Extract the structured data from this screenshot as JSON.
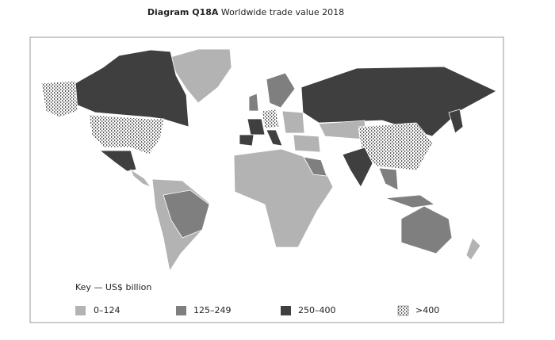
{
  "title": {
    "label": "Diagram Q18A",
    "text": "Worldwide trade value 2018"
  },
  "key": {
    "title": "Key — US$ billion",
    "items": [
      {
        "label": "0–124"
      },
      {
        "label": "125–249"
      },
      {
        "label": "250–400"
      },
      {
        "label": ">400"
      }
    ]
  }
}
